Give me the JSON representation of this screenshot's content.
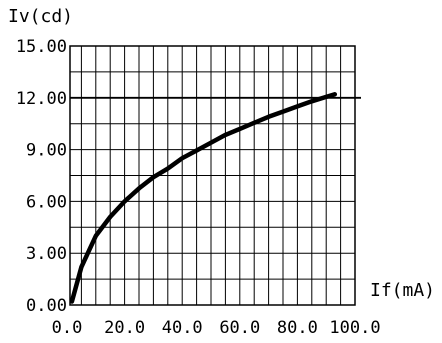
{
  "chart_data": {
    "type": "line",
    "title": "",
    "xlabel": "If(mA)",
    "ylabel": "Iv(cd)",
    "xlim": [
      0,
      100
    ],
    "ylim": [
      0,
      15
    ],
    "x_ticks": [
      "0.0",
      "20.0",
      "40.0",
      "60.0",
      "80.0",
      "100.0"
    ],
    "y_ticks": [
      "0.00",
      "3.00",
      "6.00",
      "9.00",
      "12.00",
      "15.00"
    ],
    "grid": true,
    "series": [
      {
        "x": [
          1.7,
          5,
          10,
          15,
          20,
          25,
          30,
          35,
          40,
          45,
          50,
          55,
          60,
          65,
          70,
          75,
          80,
          85,
          90,
          93
        ],
        "y": [
          0.2,
          2.2,
          4.0,
          5.1,
          6.0,
          6.75,
          7.4,
          7.9,
          8.5,
          8.95,
          9.4,
          9.85,
          10.2,
          10.55,
          10.9,
          11.2,
          11.5,
          11.8,
          12.05,
          12.2
        ]
      }
    ],
    "reference_line_y": 12,
    "colors": {
      "line": "#000000",
      "grid": "#000000",
      "background": "#ffffff"
    }
  }
}
